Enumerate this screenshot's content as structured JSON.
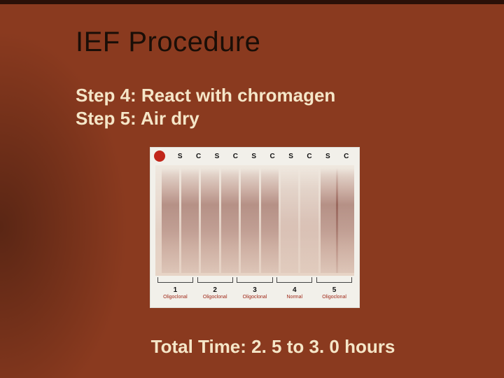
{
  "slide": {
    "background_color": "#8a3a1f",
    "title": "IEF Procedure",
    "title_color": "#1a0e07",
    "title_fontsize": 40,
    "title_font": "Impact",
    "body_text_color": "#f5e6c8",
    "body_fontsize": 26,
    "steps": {
      "step4": "Step 4: React with chromagen",
      "step5": "Step 5: Air dry"
    },
    "total_time": "Total Time: 2. 5 to 3. 0 hours"
  },
  "gel": {
    "panel_bg": "#f2f0ea",
    "gel_bg_top": "#efe8df",
    "gel_bg_bottom": "#e7d4c6",
    "dot_color": "#c1261a",
    "lane_label_color": "#111111",
    "lane_label_fontsize": 10,
    "lane_color": "#8b483c",
    "lane_labels": [
      "S",
      "C",
      "S",
      "C",
      "S",
      "C",
      "S",
      "C",
      "S",
      "C"
    ],
    "lanes": [
      {
        "pos_pct": 3,
        "type": "oligoclonal"
      },
      {
        "pos_pct": 13,
        "type": "oligoclonal"
      },
      {
        "pos_pct": 23,
        "type": "oligoclonal"
      },
      {
        "pos_pct": 33,
        "type": "oligoclonal"
      },
      {
        "pos_pct": 43,
        "type": "oligoclonal"
      },
      {
        "pos_pct": 53,
        "type": "oligoclonal"
      },
      {
        "pos_pct": 63,
        "type": "normal"
      },
      {
        "pos_pct": 73,
        "type": "normal"
      },
      {
        "pos_pct": 83,
        "type": "oligoclonal"
      },
      {
        "pos_pct": 91,
        "type": "oligoclonal"
      }
    ],
    "groups": {
      "numbers": [
        "1",
        "2",
        "3",
        "4",
        "5"
      ],
      "types": [
        "Oligoclonal",
        "Oligoclonal",
        "Oligoclonal",
        "Normal",
        "Oligoclonal"
      ],
      "number_color": "#111111",
      "type_color": "#a02818",
      "type_fontsize": 7
    }
  }
}
